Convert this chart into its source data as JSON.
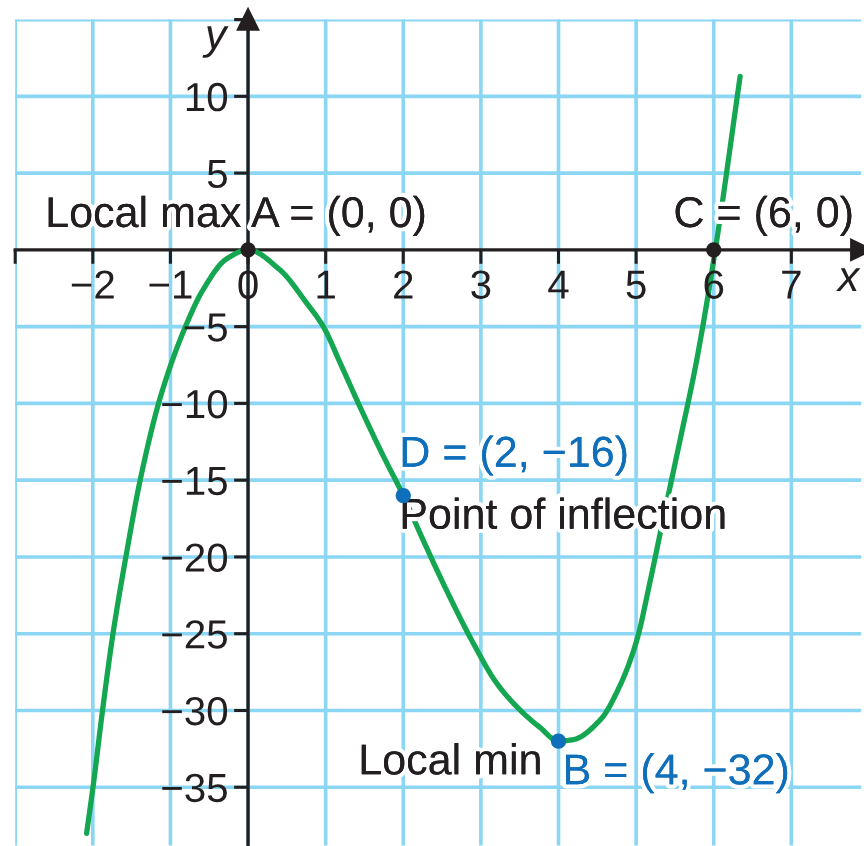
{
  "chart_data": {
    "type": "line",
    "xlabel": "x",
    "ylabel": "y",
    "xlim": [
      -3,
      7.9
    ],
    "ylim": [
      -38.8,
      15
    ],
    "xticks": [
      {
        "value": -3,
        "label": null
      },
      {
        "value": -2,
        "label": "−2"
      },
      {
        "value": -1,
        "label": "−1"
      },
      0,
      1,
      2,
      3,
      4,
      5,
      6,
      7
    ],
    "yticks": [
      {
        "value": 15,
        "label": null
      },
      10,
      5,
      {
        "value": -5,
        "label": "−5"
      },
      {
        "value": -10,
        "label": "−10"
      },
      {
        "value": -15,
        "label": "−15"
      },
      {
        "value": -20,
        "label": "−20"
      },
      {
        "value": -25,
        "label": "−25"
      },
      {
        "value": -30,
        "label": "−30"
      },
      {
        "value": -35,
        "label": "−35"
      }
    ],
    "grid": true,
    "annotations": [
      {
        "text": "Local max A = (0, 0)",
        "x": 0,
        "y": 0
      },
      {
        "text": "C = (6, 0)",
        "x": 6,
        "y": 0
      },
      {
        "text": "D = (2, −16)",
        "x": 2,
        "y": -16
      },
      {
        "text": "Point of inflection",
        "x": 2,
        "y": -16
      },
      {
        "text": "Local min",
        "x": 4,
        "y": -32
      },
      {
        "text": "B = (4, −32)",
        "x": 4,
        "y": -32
      }
    ],
    "series": [
      {
        "color": "#14a651",
        "x": [
          -2.08,
          -1.99,
          -1.88,
          -1.74,
          -1.56,
          -1.39,
          -1.13,
          -0.79,
          -0.58,
          -0.28,
          0,
          0.41,
          0.76,
          0.97,
          1.19,
          1.44,
          1.74,
          2.0,
          2.22,
          2.56,
          2.9,
          3.2,
          3.51,
          3.76,
          4.0,
          4.19,
          4.54,
          4.79,
          5.01,
          5.18,
          5.35,
          5.57,
          5.78,
          6.02,
          6.34
        ],
        "values": [
          -38,
          -34.7,
          -30.2,
          -25,
          -19.6,
          -15,
          -9.6,
          -4.8,
          -2.6,
          -0.6,
          0,
          -1.3,
          -3.5,
          -5,
          -7.4,
          -10.2,
          -13.4,
          -16,
          -18.5,
          -22.2,
          -25.6,
          -28.2,
          -30,
          -31.1,
          -32,
          -31.9,
          -30.6,
          -28.4,
          -25.4,
          -21.6,
          -17.5,
          -12.3,
          -7.2,
          0,
          11.3
        ]
      },
      {
        "type": "scatter",
        "marker": "circle",
        "colors": [
          "#231f20",
          "#0f6fba",
          "#0f6fba",
          "#231f20"
        ],
        "x": [
          0,
          2,
          4,
          6
        ],
        "values": [
          0,
          -16,
          -32,
          0
        ]
      }
    ]
  }
}
